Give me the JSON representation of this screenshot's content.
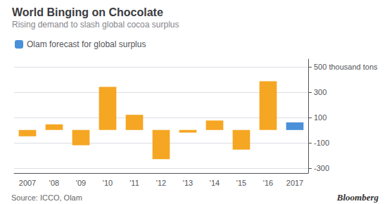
{
  "chart_data": {
    "type": "bar",
    "title": "World Binging on Chocolate",
    "subtitle": "Rising demand to slash global cocoa surplus",
    "categories": [
      "2007",
      "'08",
      "'09",
      "'10",
      "'11",
      "'12",
      "'13",
      "'14",
      "'15",
      "'16",
      "2017"
    ],
    "series": [
      {
        "name": "Olam forecast for global surplus",
        "color": "#4A90D9",
        "colors": [
          "#F5A623",
          "#F5A623",
          "#F5A623",
          "#F5A623",
          "#F5A623",
          "#F5A623",
          "#F5A623",
          "#F5A623",
          "#F5A623",
          "#F5A623",
          "#4A90D9"
        ],
        "values": [
          -50,
          45,
          -120,
          340,
          120,
          -230,
          -20,
          75,
          -155,
          385,
          60
        ]
      }
    ],
    "ylim": [
      -340,
      560
    ],
    "yticks": [
      -300,
      -100,
      100,
      300,
      {
        "value": 500,
        "label": "500 thousand tons"
      }
    ],
    "grid": true,
    "legend": "upper left",
    "annotations": [
      "Source: ICCO, Olam",
      "Bloomberg"
    ]
  }
}
